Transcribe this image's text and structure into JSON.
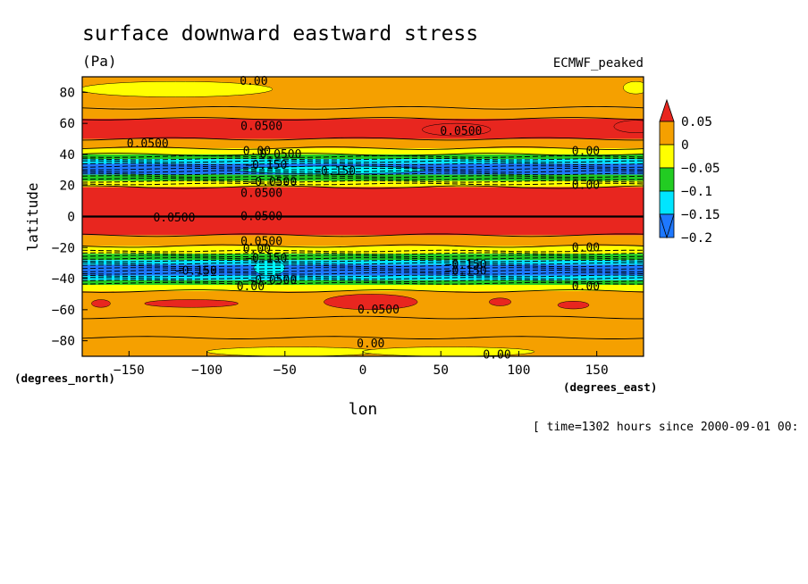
{
  "chart_data": {
    "type": "heatmap",
    "title": "surface downward eastward stress",
    "units": "(Pa)",
    "dataset": "ECMWF_peaked",
    "xlabel": "lon",
    "ylabel": "latitude",
    "x_units": "(degrees_east)",
    "y_units": "(degrees_north)",
    "xlim": [
      -180,
      180
    ],
    "ylim": [
      -90,
      90
    ],
    "x_ticks": [
      -150,
      -100,
      -50,
      0,
      50,
      100,
      150
    ],
    "y_ticks": [
      80,
      60,
      40,
      20,
      0,
      -20,
      -40,
      -60,
      -80
    ],
    "time_note": "[ time=1302 hours since 2000-09-01 00:",
    "colorbar": {
      "labels": [
        "0.05",
        "0",
        "−0.05",
        "−0.1",
        "−0.15",
        "−0.2"
      ],
      "colors": [
        "#e8261f",
        "#f5a000",
        "#ffff00",
        "#22cc22",
        "#00e5ff",
        "#1e78ff",
        "#1e5bd6"
      ]
    },
    "zonal_bands": [
      {
        "lat": [
          70,
          90
        ],
        "value": 0.02
      },
      {
        "lat": [
          63,
          70
        ],
        "value": 0.04
      },
      {
        "lat": [
          50,
          63
        ],
        "value": 0.06
      },
      {
        "lat": [
          44,
          50
        ],
        "value": 0.02
      },
      {
        "lat": [
          40,
          44
        ],
        "value": -0.03
      },
      {
        "lat": [
          37,
          40
        ],
        "value": -0.07
      },
      {
        "lat": [
          34,
          37
        ],
        "value": -0.12
      },
      {
        "lat": [
          27,
          34
        ],
        "value": -0.16
      },
      {
        "lat": [
          23,
          27
        ],
        "value": -0.08
      },
      {
        "lat": [
          19,
          23
        ],
        "value": -0.02
      },
      {
        "lat": [
          -12,
          19
        ],
        "value": 0.07
      },
      {
        "lat": [
          -19,
          -12
        ],
        "value": 0.03
      },
      {
        "lat": [
          -24,
          -19
        ],
        "value": -0.02
      },
      {
        "lat": [
          -28,
          -24
        ],
        "value": -0.07
      },
      {
        "lat": [
          -31,
          -28
        ],
        "value": -0.12
      },
      {
        "lat": [
          -38,
          -31
        ],
        "value": -0.17
      },
      {
        "lat": [
          -41,
          -38
        ],
        "value": -0.12
      },
      {
        "lat": [
          -44,
          -41
        ],
        "value": -0.06
      },
      {
        "lat": [
          -48,
          -44
        ],
        "value": -0.02
      },
      {
        "lat": [
          -90,
          -48
        ],
        "value": 0.02
      }
    ],
    "contour_labels": [
      {
        "text": "0.00",
        "lon": -70,
        "lat": 87
      },
      {
        "text": "0.0500",
        "lon": -65,
        "lat": 58
      },
      {
        "text": "0.0500",
        "lon": 63,
        "lat": 55
      },
      {
        "text": "0.0500",
        "lon": -138,
        "lat": 47
      },
      {
        "text": "0.00",
        "lon": -68,
        "lat": 42
      },
      {
        "text": "-0.0500",
        "lon": -55,
        "lat": 40
      },
      {
        "text": "-0.150",
        "lon": -62,
        "lat": 33
      },
      {
        "text": "-0.150",
        "lon": -18,
        "lat": 29
      },
      {
        "text": "0.00",
        "lon": 143,
        "lat": 42
      },
      {
        "text": "0.00",
        "lon": 143,
        "lat": 20
      },
      {
        "text": "-0.0500",
        "lon": -58,
        "lat": 22
      },
      {
        "text": "0.0500",
        "lon": -65,
        "lat": 15
      },
      {
        "text": "0.0500",
        "lon": -121,
        "lat": -1
      },
      {
        "text": "0.0500",
        "lon": -65,
        "lat": 0
      },
      {
        "text": "0.0500",
        "lon": -65,
        "lat": -16
      },
      {
        "text": "0.00",
        "lon": -68,
        "lat": -21
      },
      {
        "text": "0.00",
        "lon": 143,
        "lat": -20
      },
      {
        "text": "-0.150",
        "lon": -62,
        "lat": -27
      },
      {
        "text": "-0.150",
        "lon": 66,
        "lat": -31
      },
      {
        "text": "-0.150",
        "lon": 66,
        "lat": -35
      },
      {
        "text": "-0.150",
        "lon": -107,
        "lat": -35
      },
      {
        "text": "-0.0500",
        "lon": -58,
        "lat": -41
      },
      {
        "text": "0.00",
        "lon": -72,
        "lat": -45
      },
      {
        "text": "0.00",
        "lon": 143,
        "lat": -45
      },
      {
        "text": "0.0500",
        "lon": 10,
        "lat": -60
      },
      {
        "text": "0.00",
        "lon": 5,
        "lat": -82
      },
      {
        "text": "0.00",
        "lon": 86,
        "lat": -89
      }
    ]
  }
}
